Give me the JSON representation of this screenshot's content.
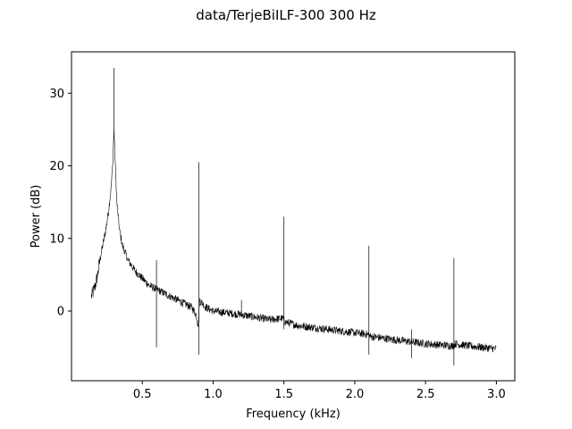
{
  "chart_data": {
    "type": "line",
    "title": "data/TerjeBiILF-300   300 Hz",
    "xlabel": "Frequency (kHz)",
    "ylabel": "Power (dB)",
    "xlim": [
      0.0,
      3.13
    ],
    "ylim": [
      -9.6,
      35.7
    ],
    "grid": false,
    "legend": "none",
    "xticks": [
      0.5,
      1.0,
      1.5,
      2.0,
      2.5,
      3.0
    ],
    "xtick_labels": [
      "0.5",
      "1.0",
      "1.5",
      "2.0",
      "2.5",
      "3.0"
    ],
    "yticks": [
      0,
      10,
      20,
      30
    ],
    "ytick_labels": [
      "0",
      "10",
      "20",
      "30"
    ],
    "series": [
      {
        "color": "#000000",
        "x_range": [
          0.14,
          3.0
        ],
        "baseline": [
          [
            0.14,
            2.0
          ],
          [
            0.16,
            3.0
          ],
          [
            0.18,
            4.5
          ],
          [
            0.2,
            7.0
          ],
          [
            0.22,
            9.0
          ],
          [
            0.24,
            11.0
          ],
          [
            0.26,
            13.5
          ],
          [
            0.28,
            17.0
          ],
          [
            0.29,
            20.0
          ],
          [
            0.3,
            25.0
          ],
          [
            0.31,
            20.0
          ],
          [
            0.32,
            15.0
          ],
          [
            0.34,
            11.0
          ],
          [
            0.36,
            9.0
          ],
          [
            0.4,
            7.0
          ],
          [
            0.45,
            5.5
          ],
          [
            0.5,
            4.5
          ],
          [
            0.55,
            3.5
          ],
          [
            0.6,
            3.0
          ],
          [
            0.7,
            2.0
          ],
          [
            0.8,
            1.0
          ],
          [
            0.85,
            0.5
          ],
          [
            0.88,
            -0.5
          ],
          [
            0.895,
            -2.0
          ],
          [
            0.905,
            1.5
          ],
          [
            0.95,
            0.5
          ],
          [
            1.0,
            0.0
          ],
          [
            1.2,
            -0.5
          ],
          [
            1.4,
            -1.2
          ],
          [
            1.49,
            -1.0
          ],
          [
            1.51,
            -1.5
          ],
          [
            1.6,
            -2.0
          ],
          [
            1.8,
            -2.5
          ],
          [
            2.0,
            -3.0
          ],
          [
            2.09,
            -3.2
          ],
          [
            2.11,
            -3.5
          ],
          [
            2.3,
            -4.0
          ],
          [
            2.5,
            -4.5
          ],
          [
            2.69,
            -4.8
          ],
          [
            2.71,
            -4.5
          ],
          [
            2.8,
            -4.8
          ],
          [
            3.0,
            -5.2
          ]
        ],
        "spikes": [
          {
            "x": 0.3,
            "top": 33.5,
            "bottom": 24.0
          },
          {
            "x": 0.6,
            "top": 7.0,
            "bottom": -5.0
          },
          {
            "x": 0.9,
            "top": 20.5,
            "bottom": -6.0
          },
          {
            "x": 1.2,
            "top": 1.5,
            "bottom": -0.8
          },
          {
            "x": 1.5,
            "top": 13.0,
            "bottom": -2.5
          },
          {
            "x": 2.1,
            "top": 9.0,
            "bottom": -6.0
          },
          {
            "x": 2.4,
            "top": -2.5,
            "bottom": -6.5
          },
          {
            "x": 2.7,
            "top": 7.3,
            "bottom": -7.5
          }
        ]
      }
    ]
  }
}
